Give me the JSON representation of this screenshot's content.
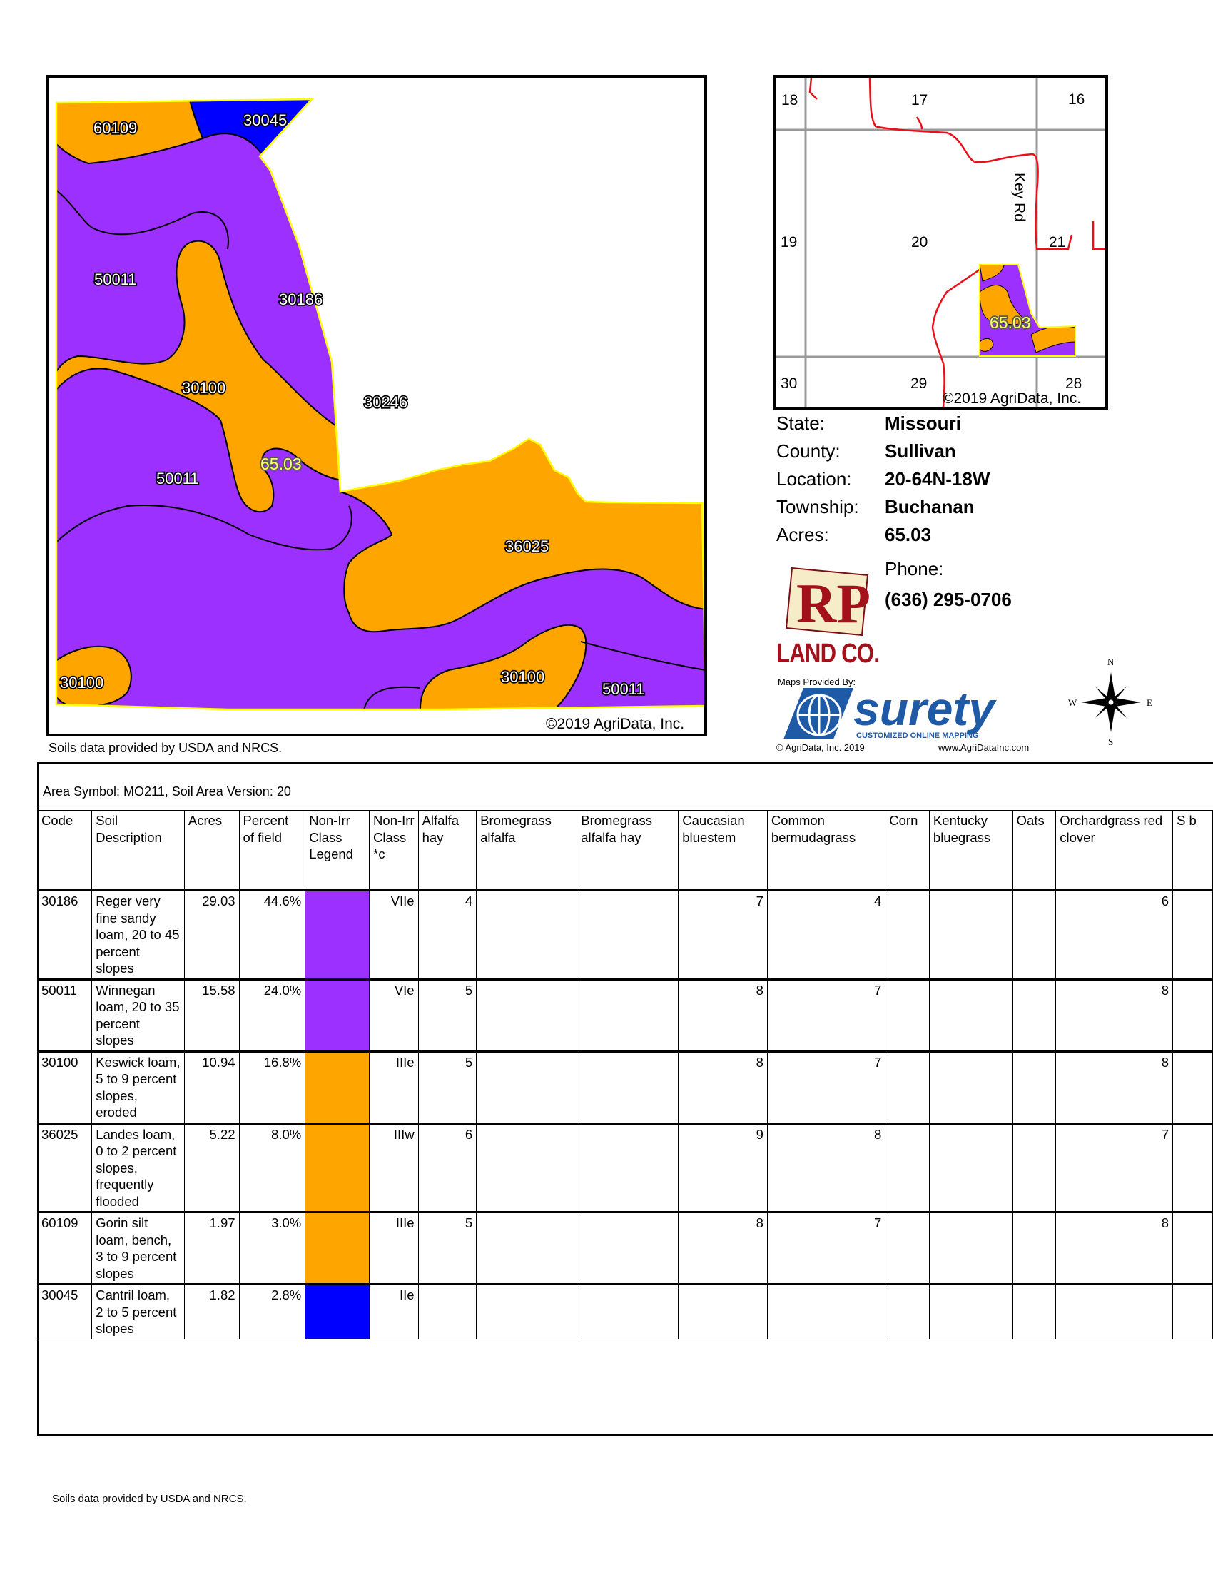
{
  "soil_map": {
    "labels": [
      "60109",
      "30045",
      "50011",
      "30186",
      "30100",
      "30246",
      "50011",
      "36025",
      "30100",
      "30100",
      "50011"
    ],
    "field_label": "65.03",
    "copyright": "©2019 AgriData, Inc.",
    "colors": {
      "purple": "#9b30ff",
      "orange": "#ffa500",
      "blue": "#0000ff",
      "boundary": "#ffff00"
    }
  },
  "vicinity_map": {
    "sections": [
      "18",
      "17",
      "16",
      "19",
      "20",
      "21",
      "30",
      "29",
      "28"
    ],
    "road_label": "Key Rd",
    "field_label": "65.03",
    "copyright": "©2019 AgriData, Inc."
  },
  "soils_credit": "Soils data provided by USDA and NRCS.",
  "info": {
    "state_label": "State:",
    "state": "Missouri",
    "county_label": "County:",
    "county": "Sullivan",
    "location_label": "Location:",
    "location": "20-64N-18W",
    "township_label": "Township:",
    "township": "Buchanan",
    "acres_label": "Acres:",
    "acres": "65.03",
    "phone_label": "Phone:",
    "phone": "(636) 295-0706"
  },
  "branding": {
    "rp_logo_text": "RP",
    "land_co": "LAND CO.",
    "maps_provided": "Maps Provided By:",
    "surety": "surety",
    "surety_tagline": "CUSTOMIZED ONLINE MAPPING",
    "agridata_year": "© AgriData, Inc. 2019",
    "agridata_url": "www.AgriDataInc.com"
  },
  "compass": {
    "n": "N",
    "s": "S",
    "e": "E",
    "w": "W"
  },
  "table": {
    "area_symbol": "Area Symbol: MO211, Soil Area Version: 20",
    "headers": [
      "Code",
      "Soil Description",
      "Acres",
      "Percent of field",
      "Non-Irr Class Legend",
      "Non-Irr Class *c",
      "Alfalfa hay",
      "Bromegrass alfalfa",
      "Bromegrass alfalfa hay",
      "Caucasian bluestem",
      "Common bermudagrass",
      "Corn",
      "Kentucky bluegrass",
      "Oats",
      "Orchardgrass red clover",
      "S b"
    ],
    "rows": [
      {
        "code": "30186",
        "desc": "Reger very fine sandy loam, 20 to 45 percent slopes",
        "acres": "29.03",
        "pct": "44.6%",
        "color": "#9b30ff",
        "cls": "VIIe",
        "alfalfa": "4",
        "brome_alf": "",
        "brome_alf_hay": "",
        "caucasian": "7",
        "bermuda": "4",
        "corn": "",
        "kbg": "",
        "oats": "",
        "orchard": "6"
      },
      {
        "code": "50011",
        "desc": "Winnegan loam, 20 to 35 percent slopes",
        "acres": "15.58",
        "pct": "24.0%",
        "color": "#9b30ff",
        "cls": "VIe",
        "alfalfa": "5",
        "brome_alf": "",
        "brome_alf_hay": "",
        "caucasian": "8",
        "bermuda": "7",
        "corn": "",
        "kbg": "",
        "oats": "",
        "orchard": "8"
      },
      {
        "code": "30100",
        "desc": "Keswick loam, 5 to 9 percent slopes, eroded",
        "acres": "10.94",
        "pct": "16.8%",
        "color": "#ffa500",
        "cls": "IIIe",
        "alfalfa": "5",
        "brome_alf": "",
        "brome_alf_hay": "",
        "caucasian": "8",
        "bermuda": "7",
        "corn": "",
        "kbg": "",
        "oats": "",
        "orchard": "8"
      },
      {
        "code": "36025",
        "desc": "Landes loam, 0 to 2 percent slopes, frequently flooded",
        "acres": "5.22",
        "pct": "8.0%",
        "color": "#ffa500",
        "cls": "IIIw",
        "alfalfa": "6",
        "brome_alf": "",
        "brome_alf_hay": "",
        "caucasian": "9",
        "bermuda": "8",
        "corn": "",
        "kbg": "",
        "oats": "",
        "orchard": "7"
      },
      {
        "code": "60109",
        "desc": "Gorin silt loam, bench, 3 to 9 percent slopes",
        "acres": "1.97",
        "pct": "3.0%",
        "color": "#ffa500",
        "cls": "IIIe",
        "alfalfa": "5",
        "brome_alf": "",
        "brome_alf_hay": "",
        "caucasian": "8",
        "bermuda": "7",
        "corn": "",
        "kbg": "",
        "oats": "",
        "orchard": "8"
      },
      {
        "code": "30045",
        "desc": "Cantril loam, 2 to 5 percent slopes",
        "acres": "1.82",
        "pct": "2.8%",
        "color": "#0000ff",
        "cls": "IIe",
        "alfalfa": "",
        "brome_alf": "",
        "brome_alf_hay": "",
        "caucasian": "",
        "bermuda": "",
        "corn": "",
        "kbg": "",
        "oats": "",
        "orchard": ""
      }
    ]
  }
}
